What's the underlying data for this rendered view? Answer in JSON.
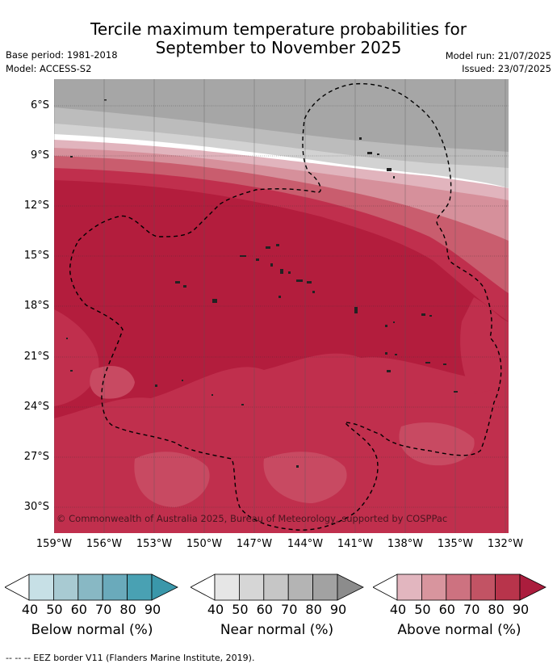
{
  "title_line1": "Tercile maximum temperature probabilities for",
  "title_line2": "September to November 2025",
  "base_period": "Base period: 1981-2018",
  "model": "Model: ACCESS-S2",
  "model_run": "Model run: 21/07/2025",
  "issued": "Issued: 23/07/2025",
  "copyright": "© Commonwealth of Australia 2025, Bureau of Meteorology, supported by COSPPac",
  "lat_labels": [
    "6°S",
    "9°S",
    "12°S",
    "15°S",
    "18°S",
    "21°S",
    "24°S",
    "27°S",
    "30°S"
  ],
  "lon_labels": [
    "159°W",
    "156°W",
    "153°W",
    "150°W",
    "147°W",
    "144°W",
    "141°W",
    "138°W",
    "135°W",
    "132°W"
  ],
  "legends": [
    {
      "title": "Below normal (%)",
      "ticks": [
        "40",
        "50",
        "60",
        "70",
        "80",
        "90"
      ],
      "colors": [
        "#ffffff",
        "#c7e0e6",
        "#a8cad2",
        "#88b8c4",
        "#6aaabb",
        "#49a1b3",
        "#3a97aa"
      ]
    },
    {
      "title": "Near normal (%)",
      "ticks": [
        "40",
        "50",
        "60",
        "70",
        "80",
        "90"
      ],
      "colors": [
        "#ffffff",
        "#e6e6e6",
        "#d6d6d6",
        "#c6c6c6",
        "#b4b4b4",
        "#a2a2a2",
        "#8c8c8c"
      ]
    },
    {
      "title": "Above normal (%)",
      "ticks": [
        "40",
        "50",
        "60",
        "70",
        "80",
        "90"
      ],
      "colors": [
        "#ffffff",
        "#e2b6bf",
        "#d8959e",
        "#cd7280",
        "#c25364",
        "#b8344b",
        "#ab1d3d"
      ]
    }
  ],
  "footer": "-- -- -- EEZ border V11 (Flanders Marine Institute, 2019)."
}
